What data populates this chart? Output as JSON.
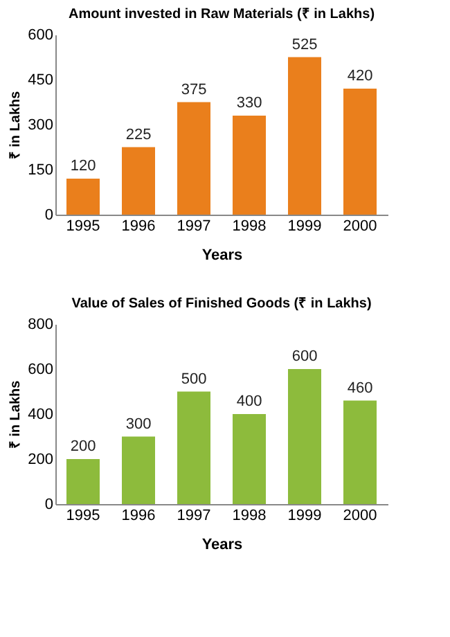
{
  "chart_data": [
    {
      "type": "bar",
      "title": "Amount invested in Raw Materials (₹ in Lakhs)",
      "xlabel": "Years",
      "ylabel": "₹ in Lakhs",
      "categories": [
        "1995",
        "1996",
        "1997",
        "1998",
        "1999",
        "2000"
      ],
      "values": [
        120,
        225,
        375,
        330,
        525,
        420
      ],
      "color": "#ea7f1c",
      "ylim": [
        0,
        600
      ],
      "yticks": [
        0,
        150,
        300,
        450,
        600
      ],
      "data_labels": true,
      "grid": false
    },
    {
      "type": "bar",
      "title": "Value of Sales of Finished Goods (₹ in Lakhs)",
      "xlabel": "Years",
      "ylabel": "₹ in Lakhs",
      "categories": [
        "1995",
        "1996",
        "1997",
        "1998",
        "1999",
        "2000"
      ],
      "values": [
        200,
        300,
        500,
        400,
        600,
        460
      ],
      "color": "#8dbb3c",
      "ylim": [
        0,
        800
      ],
      "yticks": [
        0,
        200,
        400,
        600,
        800
      ],
      "data_labels": true,
      "grid": false
    }
  ]
}
